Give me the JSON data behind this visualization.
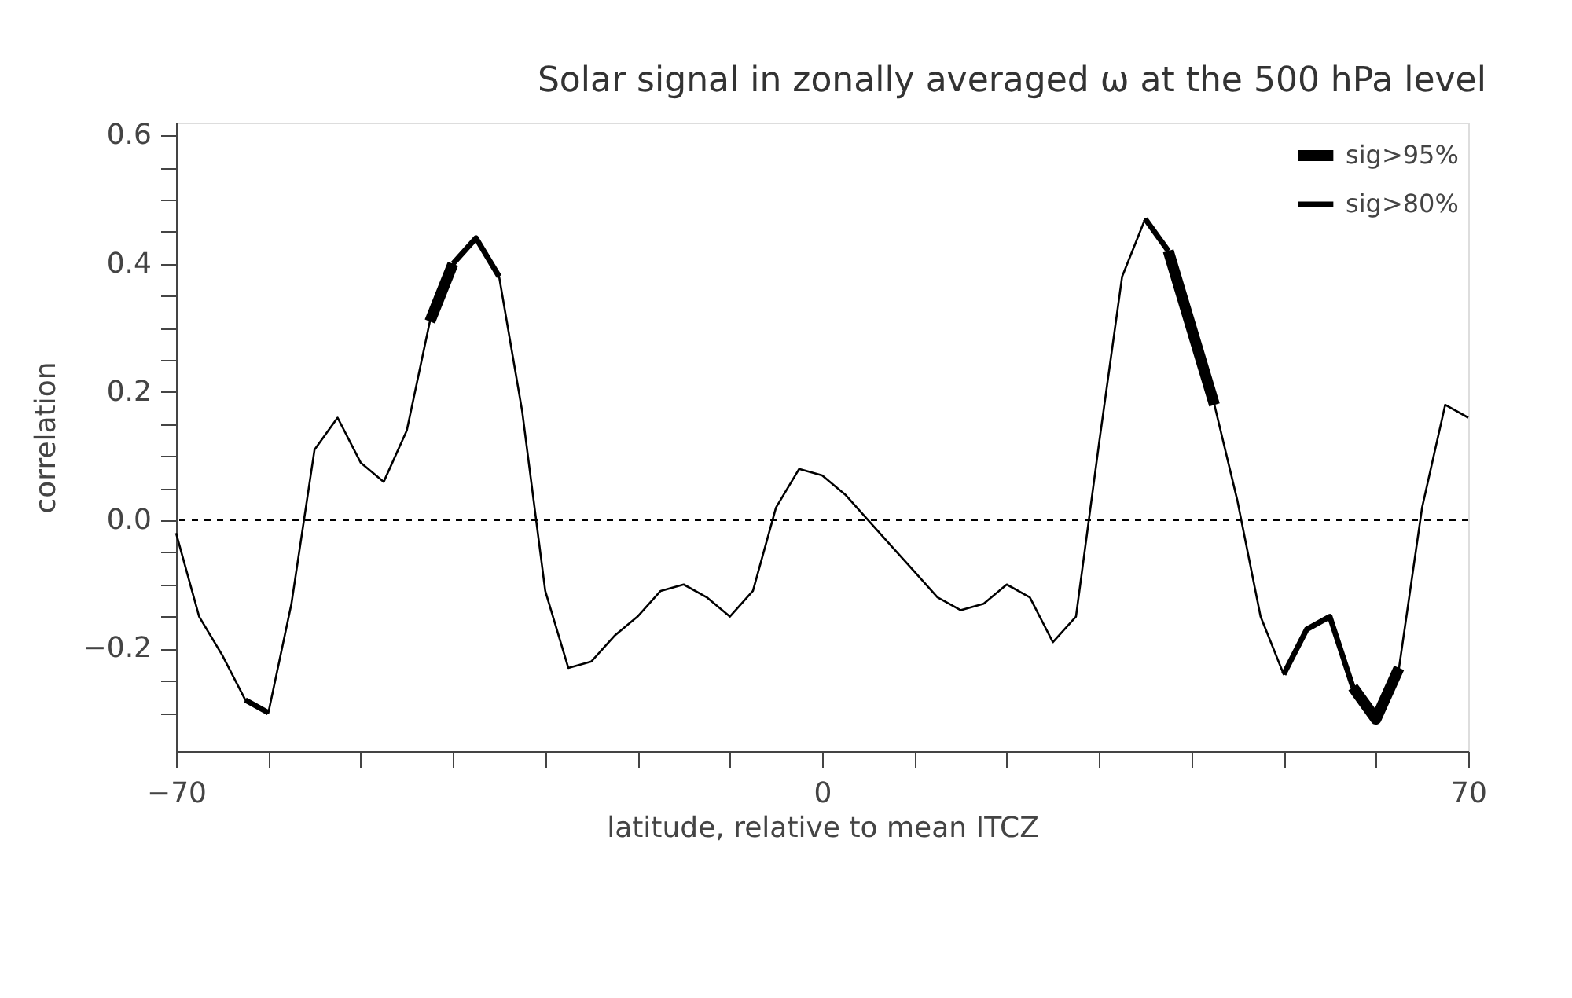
{
  "chart_data": {
    "type": "line",
    "title": "Solar signal in zonally averaged ω at the 500 hPa level",
    "xlabel": "latitude, relative to mean ITCZ",
    "ylabel": "correlation",
    "x": [
      -70,
      -67.5,
      -65,
      -62.5,
      -60,
      -57.5,
      -55,
      -52.5,
      -50,
      -47.5,
      -45,
      -42.5,
      -40,
      -37.5,
      -35,
      -32.5,
      -30,
      -27.5,
      -25,
      -22.5,
      -20,
      -17.5,
      -15,
      -12.5,
      -10,
      -7.5,
      -5,
      -2.5,
      0,
      2.5,
      5,
      7.5,
      10,
      12.5,
      15,
      17.5,
      20,
      22.5,
      25,
      27.5,
      30,
      32.5,
      35,
      37.5,
      40,
      42.5,
      45,
      47.5,
      50,
      52.5,
      55,
      57.5,
      60,
      62.5,
      65,
      67.5,
      70
    ],
    "series": [
      {
        "color": "#000000",
        "values": [
          -0.02,
          -0.15,
          -0.21,
          -0.28,
          -0.3,
          -0.13,
          0.11,
          0.16,
          0.09,
          0.06,
          0.14,
          0.31,
          0.4,
          0.44,
          0.38,
          0.17,
          -0.11,
          -0.23,
          -0.22,
          -0.18,
          -0.15,
          -0.11,
          -0.1,
          -0.12,
          -0.15,
          -0.11,
          0.02,
          0.08,
          0.07,
          0.04,
          0.0,
          -0.04,
          -0.08,
          -0.12,
          -0.14,
          -0.13,
          -0.1,
          -0.12,
          -0.19,
          -0.15,
          0.12,
          0.38,
          0.47,
          0.42,
          0.3,
          0.18,
          0.03,
          -0.15,
          -0.24,
          -0.17,
          -0.15,
          -0.26,
          -0.31,
          -0.23,
          0.02,
          0.18,
          0.16
        ]
      },
      {
        "name": "sig>95%",
        "color": "#000000",
        "values": [
          null,
          null,
          null,
          null,
          null,
          null,
          null,
          null,
          null,
          null,
          null,
          0.31,
          0.4,
          null,
          null,
          null,
          null,
          null,
          null,
          null,
          null,
          null,
          null,
          null,
          null,
          null,
          null,
          null,
          null,
          null,
          null,
          null,
          null,
          null,
          null,
          null,
          null,
          null,
          null,
          null,
          null,
          null,
          null,
          0.42,
          0.3,
          0.18,
          null,
          null,
          null,
          null,
          null,
          -0.26,
          -0.31,
          -0.23,
          null,
          null,
          null
        ]
      },
      {
        "name": "sig>80%",
        "color": "#000000",
        "values": [
          null,
          null,
          null,
          -0.28,
          -0.3,
          null,
          null,
          null,
          null,
          null,
          null,
          null,
          0.4,
          0.44,
          0.38,
          null,
          null,
          null,
          null,
          null,
          null,
          null,
          null,
          null,
          null,
          null,
          null,
          null,
          null,
          null,
          null,
          null,
          null,
          null,
          null,
          null,
          null,
          null,
          null,
          null,
          null,
          null,
          0.47,
          0.42,
          null,
          null,
          null,
          null,
          -0.24,
          -0.17,
          -0.15,
          -0.26,
          null,
          null,
          null,
          null,
          null
        ]
      }
    ],
    "xlim": [
      -70,
      70
    ],
    "xticks": [
      -70,
      {
        "value": -60,
        "label": null
      },
      {
        "value": -50,
        "label": null
      },
      {
        "value": -40,
        "label": null
      },
      {
        "value": -30,
        "label": null
      },
      {
        "value": -20,
        "label": null
      },
      {
        "value": -10,
        "label": null
      },
      0,
      {
        "value": 10,
        "label": null
      },
      {
        "value": 20,
        "label": null
      },
      {
        "value": 30,
        "label": null
      },
      {
        "value": 40,
        "label": null
      },
      {
        "value": 50,
        "label": null
      },
      {
        "value": 60,
        "label": null
      },
      70
    ],
    "ylim": [
      -0.36,
      0.62
    ],
    "yticks": [
      {
        "value": -0.3,
        "label": null
      },
      {
        "value": -0.25,
        "label": null
      },
      -0.2,
      {
        "value": -0.15,
        "label": null
      },
      {
        "value": -0.1,
        "label": null
      },
      {
        "value": -0.05,
        "label": null
      },
      {
        "value": 0,
        "label": "0.0"
      },
      {
        "value": 0.05,
        "label": null
      },
      {
        "value": 0.1,
        "label": null
      },
      {
        "value": 0.15,
        "label": null
      },
      0.2,
      {
        "value": 0.25,
        "label": null
      },
      {
        "value": 0.3,
        "label": null
      },
      {
        "value": 0.35,
        "label": null
      },
      0.4,
      {
        "value": 0.45,
        "label": null
      },
      {
        "value": 0.5,
        "label": null
      },
      {
        "value": 0.55,
        "label": null
      },
      0.6
    ],
    "ref_lines": [
      {
        "axis": "y",
        "value": 0,
        "line_style": "dashed",
        "color": "#000000"
      }
    ],
    "legend": "top right",
    "grid": false,
    "marker": "none",
    "line_style": "solid"
  }
}
